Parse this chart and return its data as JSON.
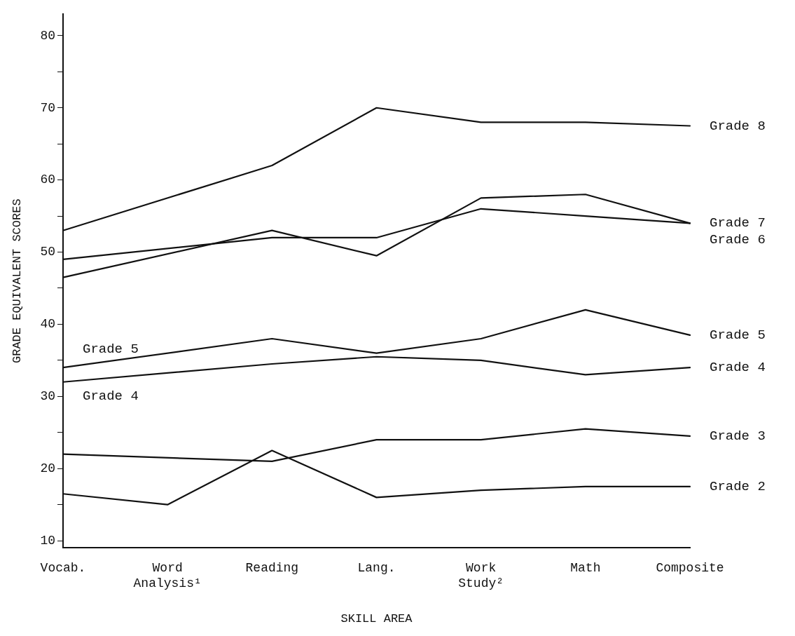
{
  "chart_data": {
    "type": "line",
    "xlabel": "SKILL AREA",
    "ylabel": "GRADE EQUIVALENT SCORES",
    "categories": [
      "Vocab.",
      "Word Analysis¹",
      "Reading",
      "Lang.",
      "Work Study²",
      "Math",
      "Composite"
    ],
    "series": [
      {
        "name": "Grade 8",
        "color": "#111111",
        "values": [
          53,
          null,
          62,
          70,
          68,
          68,
          67.5
        ]
      },
      {
        "name": "Grade 7",
        "color": "#111111",
        "values": [
          46.5,
          null,
          53,
          49.5,
          57.5,
          58,
          54
        ]
      },
      {
        "name": "Grade 6",
        "color": "#111111",
        "values": [
          49,
          null,
          52,
          52,
          56,
          55,
          54
        ]
      },
      {
        "name": "Grade 5",
        "color": "#111111",
        "values": [
          34,
          null,
          38,
          36,
          38,
          42,
          38.5
        ]
      },
      {
        "name": "Grade 4",
        "color": "#111111",
        "values": [
          32,
          null,
          34.5,
          35.5,
          35,
          33,
          34
        ]
      },
      {
        "name": "Grade 3",
        "color": "#111111",
        "values": [
          22,
          null,
          21,
          24,
          24,
          25.5,
          24.5
        ]
      },
      {
        "name": "Grade 2",
        "color": "#111111",
        "values": [
          16.5,
          15,
          22.5,
          16,
          17,
          17.5,
          17.5
        ]
      }
    ],
    "ylim": [
      9,
      83
    ],
    "yticks": [
      10,
      {
        "value": 15,
        "label": null
      },
      20,
      {
        "value": 25,
        "label": null
      },
      30,
      {
        "value": 35,
        "label": null
      },
      40,
      {
        "value": 45,
        "label": null
      },
      50,
      {
        "value": 55,
        "label": null
      },
      60,
      {
        "value": 65,
        "label": null
      },
      70,
      {
        "value": 75,
        "label": null
      },
      80
    ],
    "annotations": [
      "Grade 5",
      "Grade 4"
    ],
    "grid": false,
    "legend": false,
    "marker": "none",
    "line_style": "solid"
  }
}
